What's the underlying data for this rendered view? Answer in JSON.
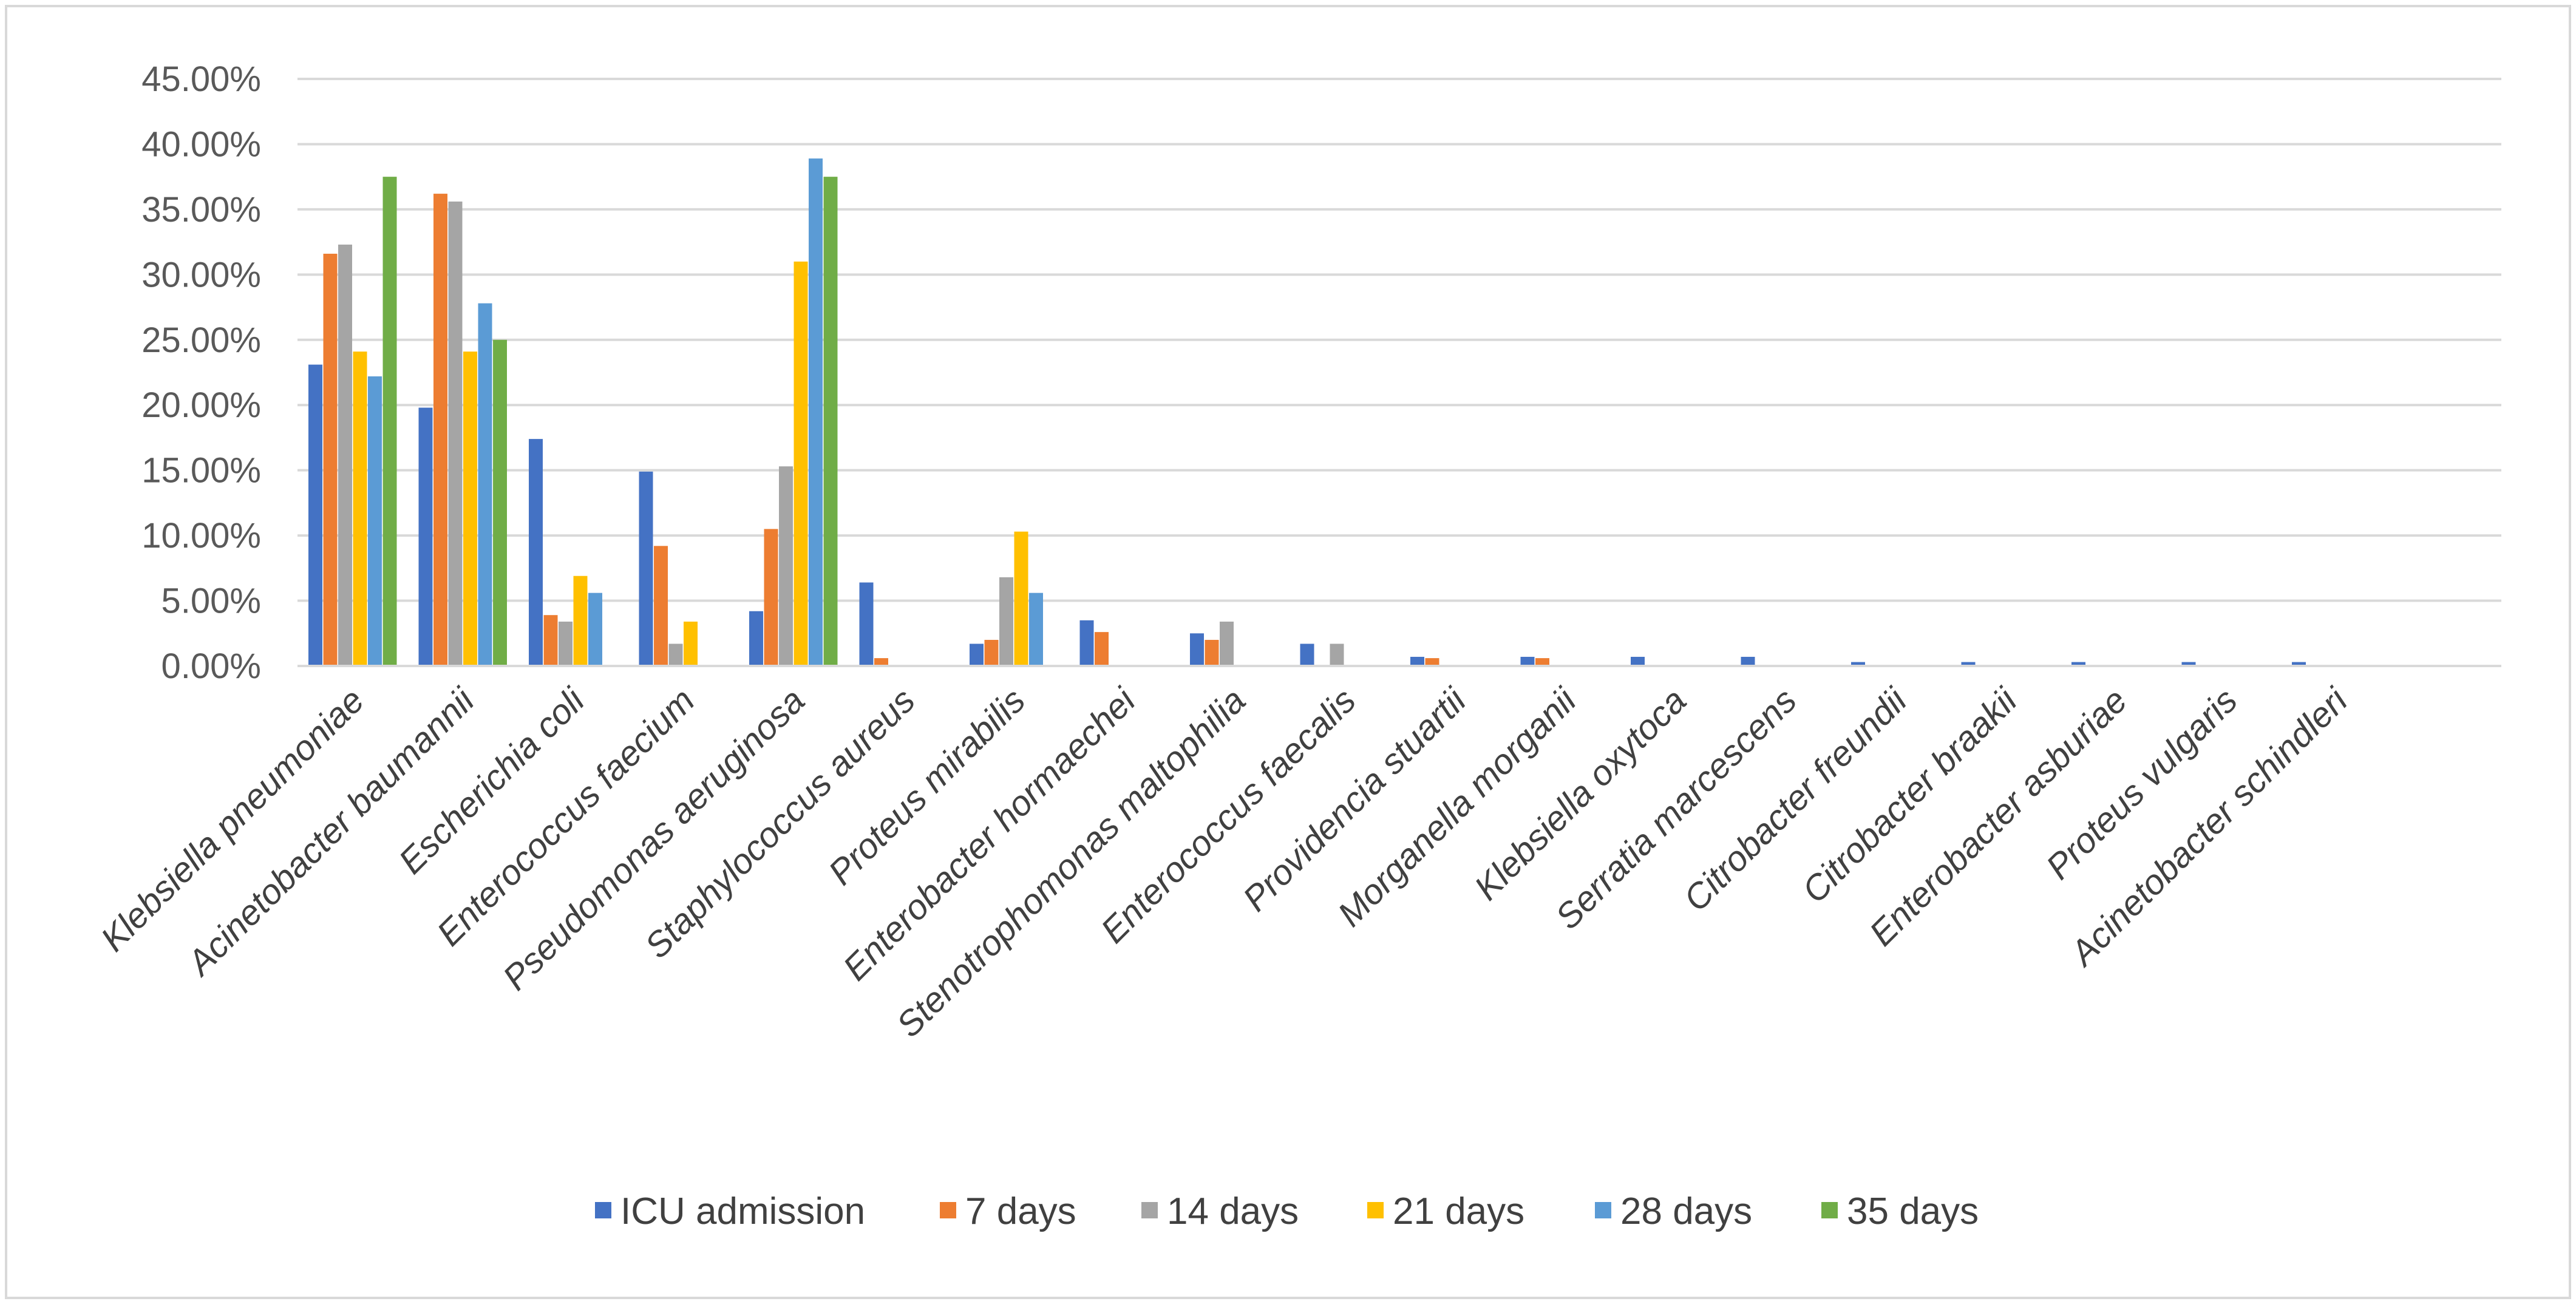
{
  "chart_data": {
    "type": "bar",
    "title": "",
    "xlabel": "",
    "ylabel": "",
    "ylim": [
      0,
      45
    ],
    "y_ticks": [
      "0.00%",
      "5.00%",
      "10.00%",
      "15.00%",
      "20.00%",
      "25.00%",
      "30.00%",
      "35.00%",
      "40.00%",
      "45.00%"
    ],
    "grid": true,
    "legend_position": "bottom",
    "categories": [
      "Klebsiella pneumoniae",
      "Acinetobacter baumannii",
      "Escherichia coli",
      "Enterococcus faecium",
      "Pseudomonas aeruginosa",
      "Staphylococcus aureus",
      "Proteus mirabilis",
      "Enterobacter hormaechei",
      "Stenotrophomonas maltophilia",
      "Enterococcus faecalis",
      "Providencia stuartii",
      "Morganella morganii",
      "Klebsiella oxytoca",
      "Serratia marcescens",
      "Citrobacter freundii",
      "Citrobacter braakii",
      "Enterobacter asburiae",
      "Proteus vulgaris",
      "Acinetobacter schindleri"
    ],
    "series": [
      {
        "name": "ICU admission",
        "color": "#4472c4",
        "values": [
          23.1,
          19.8,
          17.4,
          14.9,
          4.2,
          6.4,
          1.7,
          3.5,
          2.5,
          1.7,
          0.7,
          0.7,
          0.7,
          0.7,
          0.3,
          0.3,
          0.3,
          0.3,
          0.3
        ]
      },
      {
        "name": "7 days",
        "color": "#ed7d31",
        "values": [
          31.6,
          36.2,
          3.9,
          9.2,
          10.5,
          0.6,
          2.0,
          2.6,
          2.0,
          0,
          0.6,
          0.6,
          0,
          0,
          0,
          0,
          0,
          0,
          0
        ]
      },
      {
        "name": "14 days",
        "color": "#a5a5a5",
        "values": [
          32.3,
          35.6,
          3.4,
          1.7,
          15.3,
          0,
          6.8,
          0,
          3.4,
          1.7,
          0,
          0,
          0,
          0,
          0,
          0,
          0,
          0,
          0
        ]
      },
      {
        "name": "21 days",
        "color": "#ffc000",
        "values": [
          24.1,
          24.1,
          6.9,
          3.4,
          31.0,
          0,
          10.3,
          0,
          0,
          0,
          0,
          0,
          0,
          0,
          0,
          0,
          0,
          0,
          0
        ]
      },
      {
        "name": "28 days",
        "color": "#5b9bd5",
        "values": [
          22.2,
          27.8,
          5.6,
          0,
          38.9,
          0,
          5.6,
          0,
          0,
          0,
          0,
          0,
          0,
          0,
          0,
          0,
          0,
          0,
          0
        ]
      },
      {
        "name": "35 days",
        "color": "#70ad47",
        "values": [
          37.5,
          25.0,
          0,
          0,
          37.5,
          0,
          0,
          0,
          0,
          0,
          0,
          0,
          0,
          0,
          0,
          0,
          0,
          0,
          0
        ]
      }
    ]
  }
}
